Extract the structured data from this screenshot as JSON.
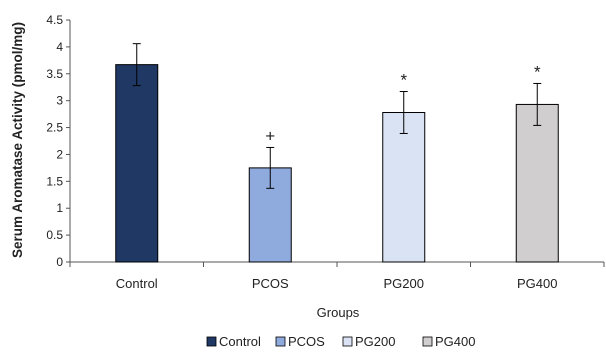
{
  "chart_data": {
    "type": "bar",
    "categories": [
      "Control",
      "PCOS",
      "PG200",
      "PG400"
    ],
    "values": [
      3.67,
      1.75,
      2.78,
      2.93
    ],
    "errors": [
      0.39,
      0.38,
      0.39,
      0.39
    ],
    "annotations": [
      "",
      "+",
      "*",
      "*"
    ],
    "colors": [
      "#1f3864",
      "#8faadc",
      "#dae3f3",
      "#d0cece"
    ],
    "xlabel": "Groups",
    "ylabel": "Serum Aromatase Activity (pmol/mg)",
    "ylim": [
      0,
      4.5
    ],
    "yticks": [
      "0",
      "0.5",
      "1",
      "1.5",
      "2",
      "2.5",
      "3",
      "3.5",
      "4",
      "4.5"
    ],
    "grid": false,
    "legend": {
      "position": "bottom",
      "entries": [
        "Control",
        "PCOS",
        "PG200",
        "PG400"
      ]
    }
  }
}
